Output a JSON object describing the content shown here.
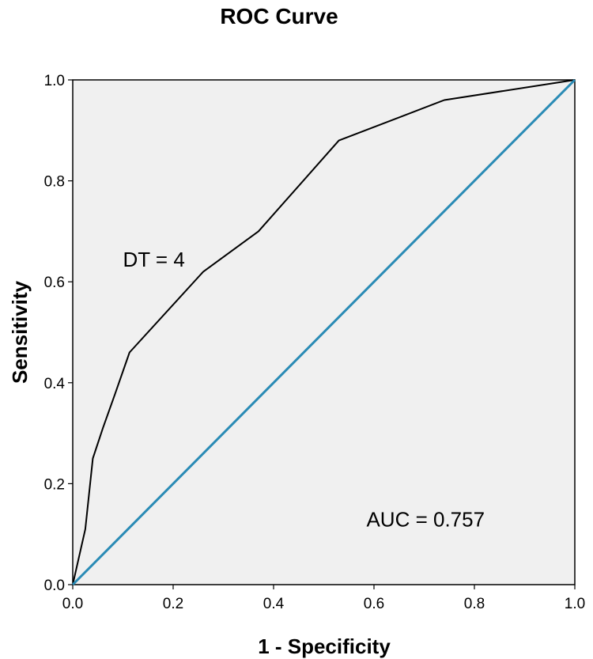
{
  "chart_data": {
    "type": "line",
    "title": "ROC Curve",
    "xlabel": "1 - Specificity",
    "ylabel": "Sensitivity",
    "xlim": [
      0,
      1
    ],
    "ylim": [
      0,
      1
    ],
    "x_ticks": [
      "0.0",
      "0.2",
      "0.4",
      "0.6",
      "0.8",
      "1.0"
    ],
    "y_ticks": [
      "0.0",
      "0.2",
      "0.4",
      "0.6",
      "0.8",
      "1.0"
    ],
    "grid": false,
    "series": [
      {
        "style": "roc",
        "color": "#000000",
        "x": [
          0.0,
          0.025,
          0.04,
          0.06,
          0.085,
          0.113,
          0.26,
          0.37,
          0.53,
          0.74,
          1.0
        ],
        "y": [
          0.0,
          0.11,
          0.25,
          0.31,
          0.38,
          0.46,
          0.62,
          0.7,
          0.88,
          0.96,
          1.0
        ]
      },
      {
        "style": "reference",
        "color": "#2a8bb5",
        "x": [
          0.0,
          1.0
        ],
        "y": [
          0.0,
          1.0
        ]
      }
    ],
    "annotations": {
      "dt": {
        "text": "DT = 4",
        "x": 0.1,
        "y": 0.63
      },
      "auc": {
        "text": "AUC = 0.757",
        "x": 0.585,
        "y": 0.115
      }
    },
    "plot_background": "#f0f0f0"
  }
}
